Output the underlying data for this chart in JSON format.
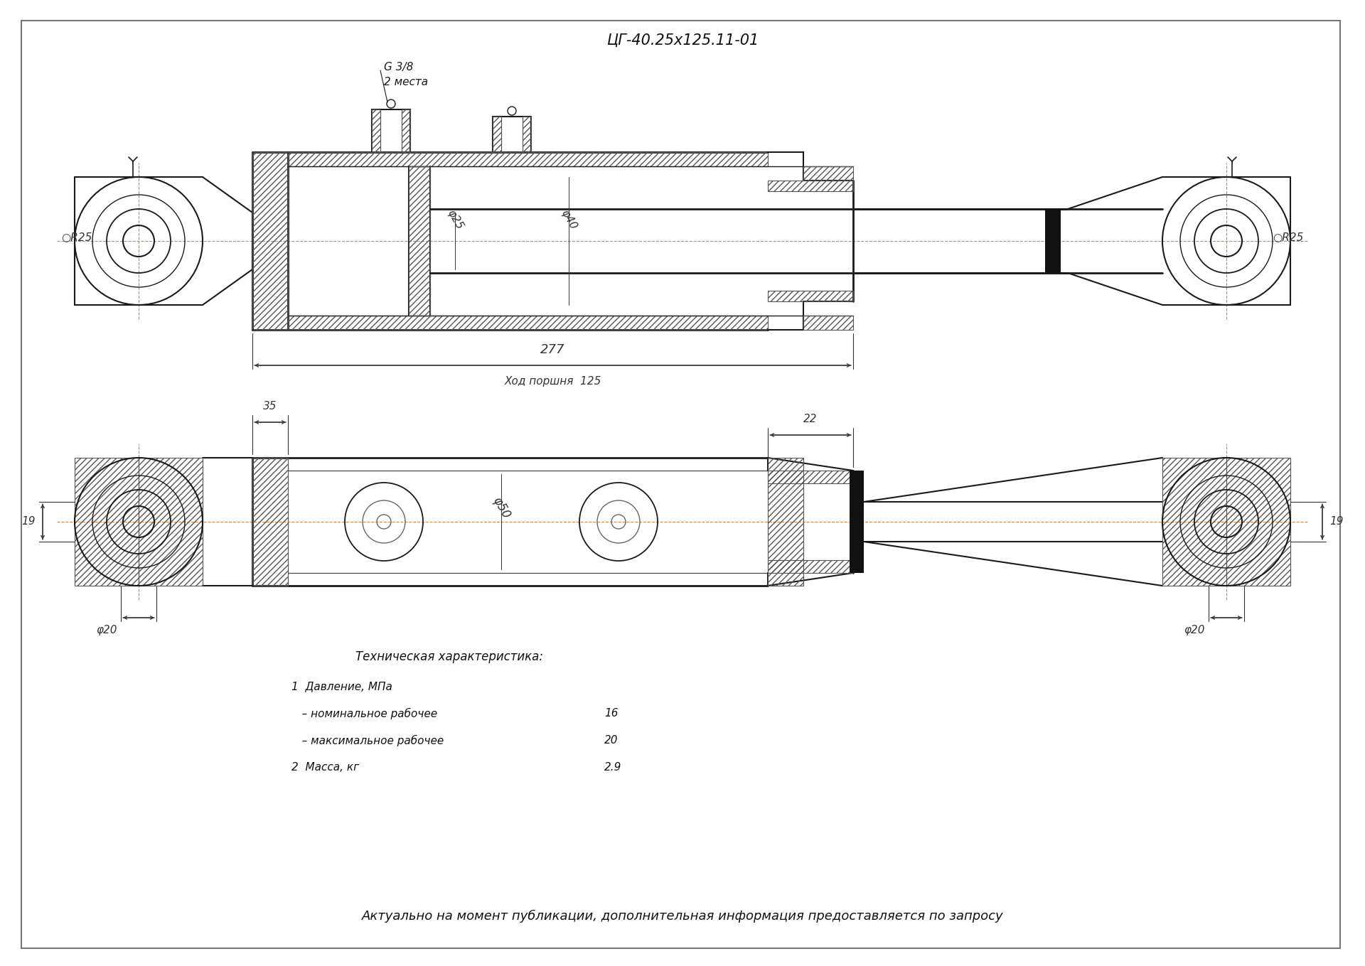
{
  "title": "ЦГ-40.25х125.11-01",
  "bg_color": "#FFFFFF",
  "line_color": "#1a1a1a",
  "dim_color": "#333333",
  "center_line_color": "#cc8844",
  "title_fontsize": 15,
  "tech_title": "Техническая характеристика:",
  "tech_items": [
    {
      "label": "1  Давление, МПа",
      "value": ""
    },
    {
      "label": "   – номинальное рабочее",
      "value": "16"
    },
    {
      "label": "   – максимальное рабочее",
      "value": "20"
    },
    {
      "label": "2  Масса, кг",
      "value": "2.9"
    }
  ],
  "footer": "Актуально на момент публикации, дополнительная информация предоставляется по запросу",
  "dim_277": "277",
  "dim_stroke": "Ход поршня  125",
  "dim_35": "35",
  "dim_22": "22",
  "dim_19_left": "19",
  "dim_19_right": "19",
  "dim_phi20_left": "φ20",
  "dim_phi20_right": "φ20",
  "dim_phi50": "φ50",
  "dim_phi25": "φ25",
  "dim_phi40": "φ40",
  "dim_G38": "G 3/8",
  "dim_2mesta": "2 места",
  "dim_R25_left": "○R25",
  "dim_R25_right": "○R25"
}
